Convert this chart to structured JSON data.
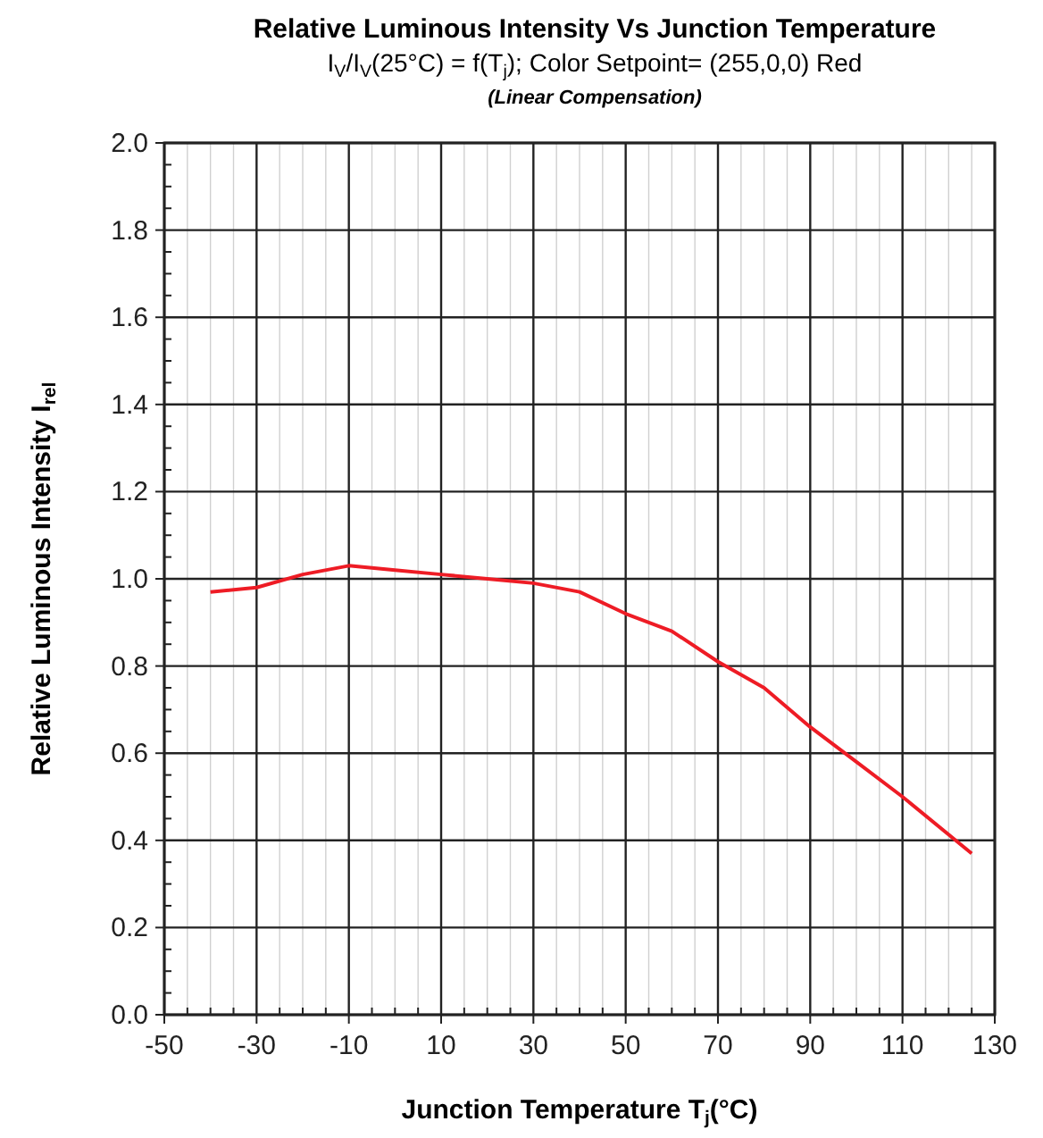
{
  "chart_data": {
    "type": "line",
    "title": "Relative Luminous Intensity Vs Junction Temperature",
    "subtitle": "I$_{V}$/I$_{V}$(25°C) = f(T$_{j}$); Color Setpoint= (255,0,0) Red",
    "annotations": [
      "(Linear Compensation)"
    ],
    "xlabel": "Junction Temperature T$_{j}$(°C)",
    "ylabel": "Relative Luminous Intensity I$_{rel}$",
    "x": [
      -40,
      -30,
      -20,
      -10,
      0,
      10,
      20,
      30,
      40,
      50,
      60,
      70,
      80,
      90,
      100,
      110,
      125
    ],
    "series": [
      {
        "color": "#ee1c25",
        "values": [
          0.97,
          0.98,
          1.01,
          1.03,
          1.02,
          1.01,
          1.0,
          0.99,
          0.97,
          0.92,
          0.88,
          0.81,
          0.75,
          0.66,
          0.58,
          0.5,
          0.37
        ]
      }
    ],
    "xlim": [
      -50,
      130
    ],
    "xticks": [
      -50,
      -30,
      -10,
      10,
      30,
      50,
      70,
      90,
      110,
      130
    ],
    "ylim": [
      0,
      2
    ],
    "yticks": [
      {
        "value": 0,
        "label": "0.0"
      },
      {
        "value": 0.2,
        "label": "0.2"
      },
      {
        "value": 0.4,
        "label": "0.4"
      },
      {
        "value": 0.6,
        "label": "0.6"
      },
      {
        "value": 0.8,
        "label": "0.8"
      },
      {
        "value": 1,
        "label": "1.0"
      },
      {
        "value": 1.2,
        "label": "1.2"
      },
      {
        "value": 1.4,
        "label": "1.4"
      },
      {
        "value": 1.6,
        "label": "1.6"
      },
      {
        "value": 1.8,
        "label": "1.8"
      },
      {
        "value": 2,
        "label": "2.0"
      }
    ],
    "grid": true,
    "marker": "none",
    "line_style": "solid"
  }
}
